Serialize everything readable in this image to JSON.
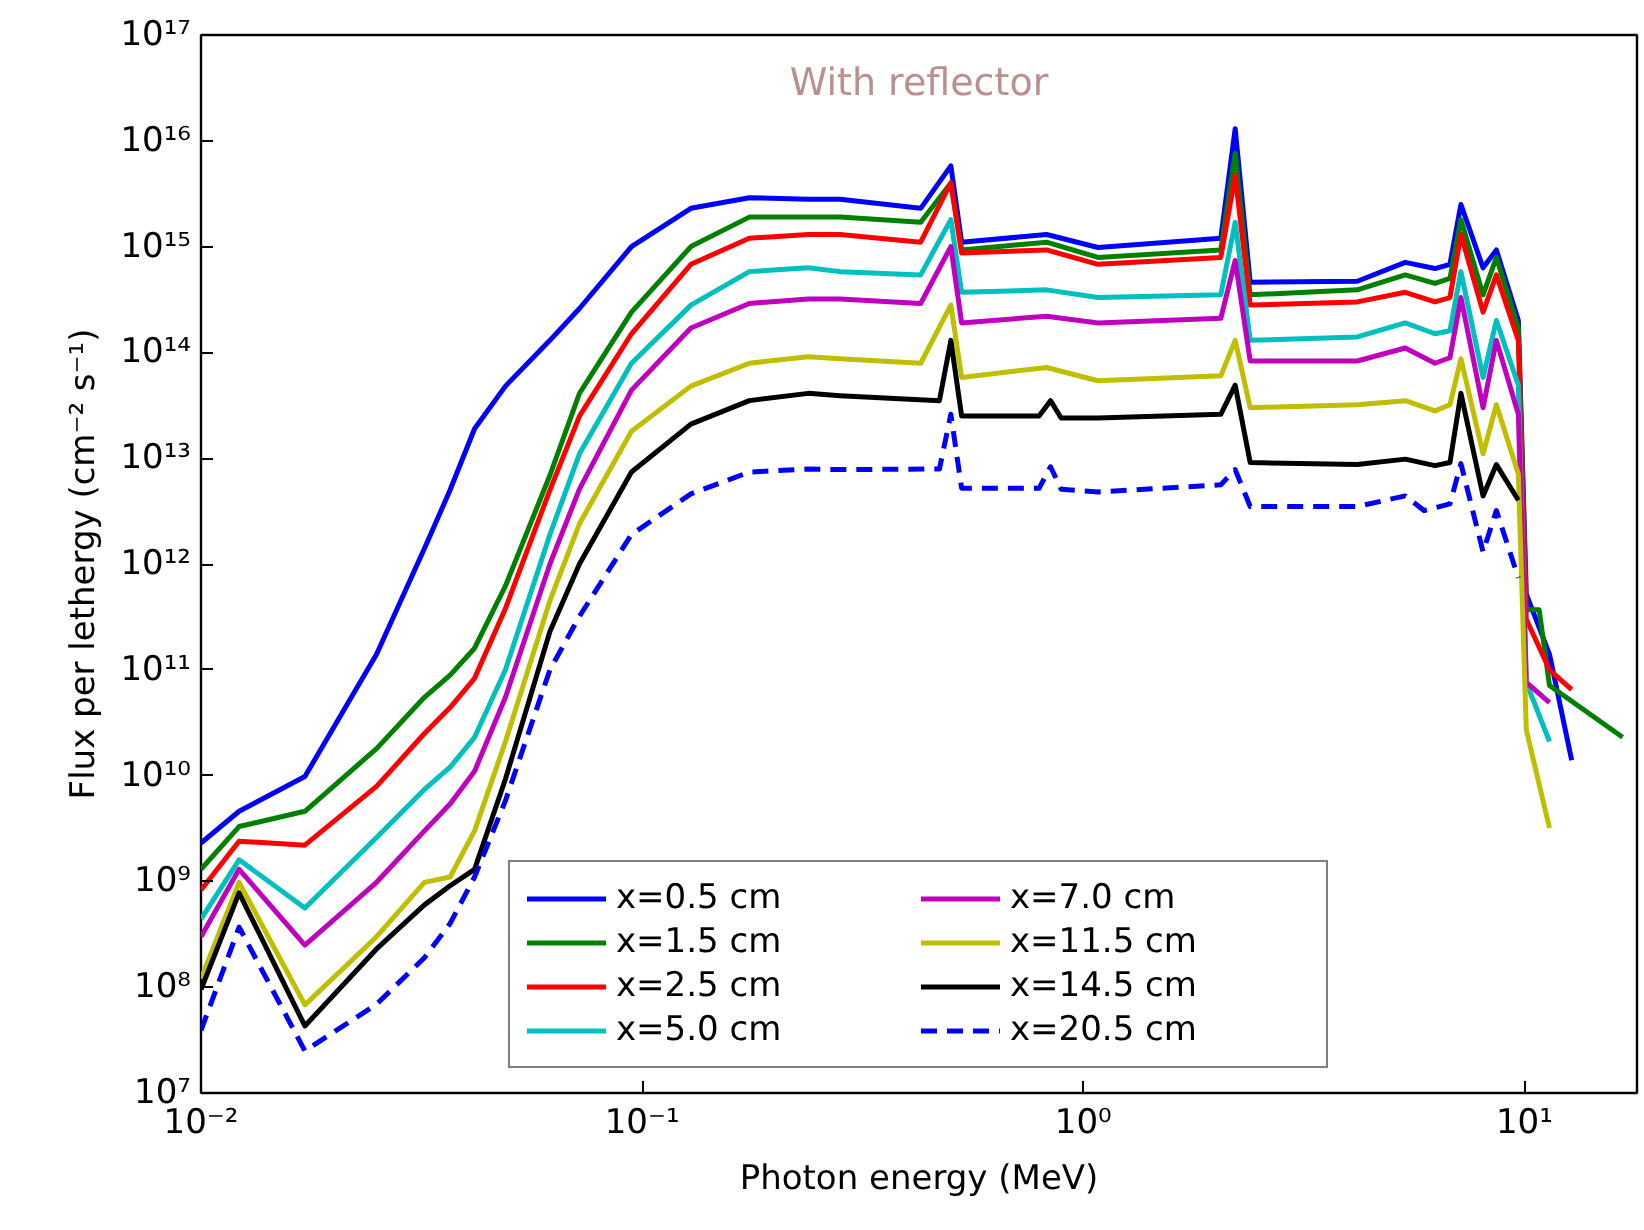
{
  "chart_data": {
    "type": "line",
    "title": "With reflector",
    "xlabel": "Photon energy (MeV)",
    "ylabel": "Flux per lethergy (cm⁻² s⁻¹)",
    "log": "xy",
    "grid": false,
    "legend": "bottom",
    "marker": "none",
    "line_style": "solid",
    "xlim": [
      0.01,
      18
    ],
    "ylim": [
      10000000.0,
      1e+17
    ],
    "xticks": [
      {
        "value": 0.01,
        "label": "10⁻²"
      },
      {
        "value": 0.1,
        "label": "10⁻¹"
      },
      {
        "value": 1,
        "label": "10⁰"
      },
      {
        "value": 10,
        "label": "10¹"
      }
    ],
    "yticks": [
      {
        "value": 10000000.0,
        "label": "10⁷"
      },
      {
        "value": 100000000.0,
        "label": "10⁸"
      },
      {
        "value": 1000000000.0,
        "label": "10⁹"
      },
      {
        "value": 10000000000.0,
        "label": "10¹⁰"
      },
      {
        "value": 100000000000.0,
        "label": "10¹¹"
      },
      {
        "value": 1000000000000.0,
        "label": "10¹²"
      },
      {
        "value": 10000000000000.0,
        "label": "10¹³"
      },
      {
        "value": 100000000000000.0,
        "label": "10¹⁴"
      },
      {
        "value": 1000000000000000.0,
        "label": "10¹⁵"
      },
      {
        "value": 1e+16,
        "label": "10¹⁶"
      },
      {
        "value": 1e+17,
        "label": "10¹⁷"
      }
    ],
    "series": [
      {
        "name": "x=0.5 cm",
        "color": "#0000ff",
        "x": [
          0.01,
          0.0122,
          0.0172,
          0.025,
          0.0321,
          0.0367,
          0.0417,
          0.049,
          0.0618,
          0.0721,
          0.0946,
          0.129,
          0.175,
          0.238,
          0.281,
          0.428,
          0.501,
          0.53,
          0.826,
          1.08,
          2.05,
          2.21,
          2.39,
          4.18,
          5.37,
          6.27,
          6.78,
          7.18,
          8.06,
          8.64,
          9.69,
          10.1,
          11.4,
          12.8
        ],
        "values": [
          2300000000.0,
          4600000000.0,
          9800000000.0,
          140000000000.0,
          1400000000000.0,
          5000000000000.0,
          19000000000000.0,
          48000000000000.0,
          130000000000000.0,
          260000000000000.0,
          1000000000000000.0,
          2300000000000000.0,
          2900000000000000.0,
          2800000000000000.0,
          2800000000000000.0,
          2300000000000000.0,
          5800000000000000.0,
          1100000000000000.0,
          1300000000000000.0,
          980000000000000.0,
          1200000000000000.0,
          1.3e+16,
          460000000000000.0,
          470000000000000.0,
          710000000000000.0,
          620000000000000.0,
          680000000000000.0,
          2500000000000000.0,
          630000000000000.0,
          930000000000000.0,
          200000000000000.0,
          520000000000.0,
          140000000000.0,
          14000000000.0
        ]
      },
      {
        "name": "x=1.5 cm",
        "color": "#008000",
        "x": [
          0.01,
          0.0122,
          0.0172,
          0.025,
          0.0321,
          0.0367,
          0.0417,
          0.049,
          0.0618,
          0.0721,
          0.0946,
          0.129,
          0.175,
          0.238,
          0.281,
          0.428,
          0.501,
          0.53,
          0.826,
          1.08,
          2.05,
          2.21,
          2.39,
          4.18,
          5.37,
          6.27,
          6.78,
          7.18,
          8.06,
          8.64,
          9.69,
          10.1,
          10.8,
          11.4,
          16.7
        ],
        "values": [
          1300000000.0,
          3300000000.0,
          4600000000.0,
          18000000000.0,
          55000000000.0,
          89000000000.0,
          160000000000.0,
          620000000000.0,
          6900000000000.0,
          41000000000000.0,
          240000000000000.0,
          1000000000000000.0,
          1900000000000000.0,
          1900000000000000.0,
          1900000000000000.0,
          1700000000000000.0,
          4000000000000000.0,
          930000000000000.0,
          1100000000000000.0,
          790000000000000.0,
          930000000000000.0,
          7600000000000000.0,
          350000000000000.0,
          390000000000000.0,
          540000000000000.0,
          450000000000000.0,
          500000000000000.0,
          1800000000000000.0,
          350000000000000.0,
          790000000000000.0,
          170000000000000.0,
          370000000000.0,
          370000000000.0,
          71000000000.0,
          23000000000.0
        ]
      },
      {
        "name": "x=2.5 cm",
        "color": "#ff0000",
        "x": [
          0.01,
          0.0122,
          0.0172,
          0.025,
          0.0321,
          0.0367,
          0.0417,
          0.049,
          0.0618,
          0.0721,
          0.0946,
          0.129,
          0.175,
          0.238,
          0.281,
          0.428,
          0.501,
          0.53,
          0.826,
          1.08,
          2.05,
          2.21,
          2.39,
          4.18,
          5.37,
          6.27,
          6.78,
          7.18,
          8.06,
          8.64,
          9.69,
          10.1,
          11.4,
          12.8
        ],
        "values": [
          830000000.0,
          2400000000.0,
          2200000000.0,
          7900000000.0,
          25000000000.0,
          44000000000.0,
          83000000000.0,
          380000000000.0,
          5000000000000.0,
          25000000000000.0,
          150000000000000.0,
          680000000000000.0,
          1200000000000000.0,
          1300000000000000.0,
          1300000000000000.0,
          1100000000000000.0,
          4000000000000000.0,
          870000000000000.0,
          930000000000000.0,
          680000000000000.0,
          790000000000000.0,
          4700000000000000.0,
          280000000000000.0,
          300000000000000.0,
          370000000000000.0,
          300000000000000.0,
          330000000000000.0,
          1300000000000000.0,
          240000000000000.0,
          540000000000000.0,
          130000000000000.0,
          300000000000.0,
          100000000000.0,
          65000000000.0
        ]
      },
      {
        "name": "x=5.0 cm",
        "color": "#00bfbf",
        "x": [
          0.01,
          0.0122,
          0.0172,
          0.025,
          0.0321,
          0.0367,
          0.0417,
          0.049,
          0.0618,
          0.0721,
          0.0946,
          0.129,
          0.175,
          0.238,
          0.281,
          0.428,
          0.501,
          0.53,
          0.826,
          1.08,
          2.05,
          2.21,
          2.39,
          4.18,
          5.37,
          6.27,
          6.78,
          7.18,
          8.06,
          8.64,
          9.69,
          10.1,
          11.4
        ],
        "values": [
          440000000.0,
          1600000000.0,
          560000000.0,
          2600000000.0,
          7400000000.0,
          12000000000.0,
          23000000000.0,
          100000000000.0,
          1900000000000.0,
          11000000000000.0,
          79000000000000.0,
          280000000000000.0,
          580000000000000.0,
          630000000000000.0,
          580000000000000.0,
          540000000000000.0,
          1800000000000000.0,
          370000000000000.0,
          390000000000000.0,
          330000000000000.0,
          350000000000000.0,
          1700000000000000.0,
          130000000000000.0,
          140000000000000.0,
          190000000000000.0,
          150000000000000.0,
          160000000000000.0,
          580000000000000.0,
          58000000000000.0,
          200000000000000.0,
          49000000000000.0,
          76000000000.0,
          21000000000.0
        ]
      },
      {
        "name": "x=7.0 cm",
        "color": "#bf00bf",
        "x": [
          0.01,
          0.0122,
          0.0172,
          0.025,
          0.0321,
          0.0367,
          0.0417,
          0.049,
          0.0618,
          0.0721,
          0.0946,
          0.129,
          0.175,
          0.238,
          0.281,
          0.428,
          0.501,
          0.53,
          0.826,
          1.08,
          2.05,
          2.21,
          2.39,
          4.18,
          5.37,
          6.27,
          6.78,
          7.18,
          8.06,
          8.64,
          9.69,
          10.1,
          11.4
        ],
        "values": [
          300000000.0,
          1300000000.0,
          250000000.0,
          980000000.0,
          3000000000.0,
          5400000000.0,
          11000000000.0,
          55000000000.0,
          1000000000000.0,
          5100000000000.0,
          44000000000000.0,
          170000000000000.0,
          290000000000000.0,
          320000000000000.0,
          320000000000000.0,
          290000000000000.0,
          1000000000000000.0,
          190000000000000.0,
          220000000000000.0,
          190000000000000.0,
          210000000000000.0,
          740000000000000.0,
          83000000000000.0,
          83000000000000.0,
          110000000000000.0,
          79000000000000.0,
          89000000000000.0,
          330000000000000.0,
          30000000000000.0,
          130000000000000.0,
          26000000000000.0,
          76000000000.0,
          49000000000.0
        ]
      },
      {
        "name": "x=11.5 cm",
        "color": "#bfbf00",
        "x": [
          0.01,
          0.0122,
          0.0172,
          0.025,
          0.0321,
          0.0367,
          0.0417,
          0.049,
          0.0618,
          0.0721,
          0.0946,
          0.129,
          0.175,
          0.238,
          0.281,
          0.428,
          0.501,
          0.53,
          0.826,
          1.08,
          2.05,
          2.21,
          2.39,
          4.18,
          5.37,
          6.27,
          6.78,
          7.18,
          8.06,
          8.64,
          9.69,
          10.1,
          11.4
        ],
        "values": [
          120000000.0,
          980000000.0,
          68000000.0,
          300000000.0,
          980000000.0,
          1100000000.0,
          3000000000.0,
          21000000000.0,
          450000000000.0,
          2400000000000.0,
          18000000000000.0,
          48000000000000.0,
          79000000000000.0,
          91000000000000.0,
          87000000000000.0,
          79000000000000.0,
          280000000000000.0,
          58000000000000.0,
          72000000000000.0,
          54000000000000.0,
          60000000000000.0,
          130000000000000.0,
          30000000000000.0,
          32000000000000.0,
          35000000000000.0,
          28000000000000.0,
          32000000000000.0,
          87000000000000.0,
          11000000000000.0,
          32000000000000.0,
          7100000000000.0,
          27000000000.0,
          3200000000.0
        ]
      },
      {
        "name": "x=14.5 cm",
        "color": "#000000",
        "x": [
          0.01,
          0.0122,
          0.0172,
          0.025,
          0.0321,
          0.0367,
          0.0417,
          0.049,
          0.0618,
          0.0721,
          0.0946,
          0.129,
          0.175,
          0.238,
          0.281,
          0.472,
          0.501,
          0.53,
          0.794,
          0.843,
          0.891,
          1.08,
          2.05,
          2.21,
          2.39,
          4.18,
          5.37,
          6.27,
          6.78,
          7.18,
          8.06,
          8.64,
          9.69
        ],
        "values": [
          95000000.0,
          780000000.0,
          43000000.0,
          230000000.0,
          600000000.0,
          910000000.0,
          1300000000.0,
          9300000000.0,
          230000000000.0,
          1000000000000.0,
          7400000000000.0,
          21000000000000.0,
          35000000000000.0,
          41000000000000.0,
          39000000000000.0,
          35000000000000.0,
          130000000000000.0,
          25000000000000.0,
          25000000000000.0,
          35000000000000.0,
          24000000000000.0,
          24000000000000.0,
          26000000000000.0,
          49000000000000.0,
          9100000000000.0,
          8700000000000.0,
          9800000000000.0,
          8500000000000.0,
          9100000000000.0,
          41000000000000.0,
          4400000000000.0,
          8700000000000.0,
          4000000000000.0
        ]
      },
      {
        "name": "x=20.5 cm",
        "color": "#0000ff",
        "line_style": "dashed",
        "x": [
          0.01,
          0.0122,
          0.0172,
          0.025,
          0.0321,
          0.0367,
          0.0417,
          0.049,
          0.0618,
          0.0721,
          0.0946,
          0.129,
          0.175,
          0.238,
          0.281,
          0.472,
          0.501,
          0.53,
          0.794,
          0.843,
          0.891,
          1.08,
          2.05,
          2.21,
          2.39,
          4.18,
          5.37,
          5.92,
          6.78,
          7.18,
          8.06,
          8.64,
          9.69
        ],
        "values": [
          39000000.0,
          370000000.0,
          25000000.0,
          69000000.0,
          190000000.0,
          400000000.0,
          1100000000.0,
          5800000000.0,
          100000000000.0,
          320000000000.0,
          1900000000000.0,
          4600000000000.0,
          7400000000000.0,
          7900000000000.0,
          7800000000000.0,
          7900000000000.0,
          26000000000000.0,
          5200000000000.0,
          5200000000000.0,
          8300000000000.0,
          5100000000000.0,
          4800000000000.0,
          5600000000000.0,
          7800000000000.0,
          3500000000000.0,
          3500000000000.0,
          4400000000000.0,
          3200000000000.0,
          3700000000000.0,
          8900000000000.0,
          1300000000000.0,
          3200000000000.0,
          740000000000.0
        ]
      }
    ]
  }
}
